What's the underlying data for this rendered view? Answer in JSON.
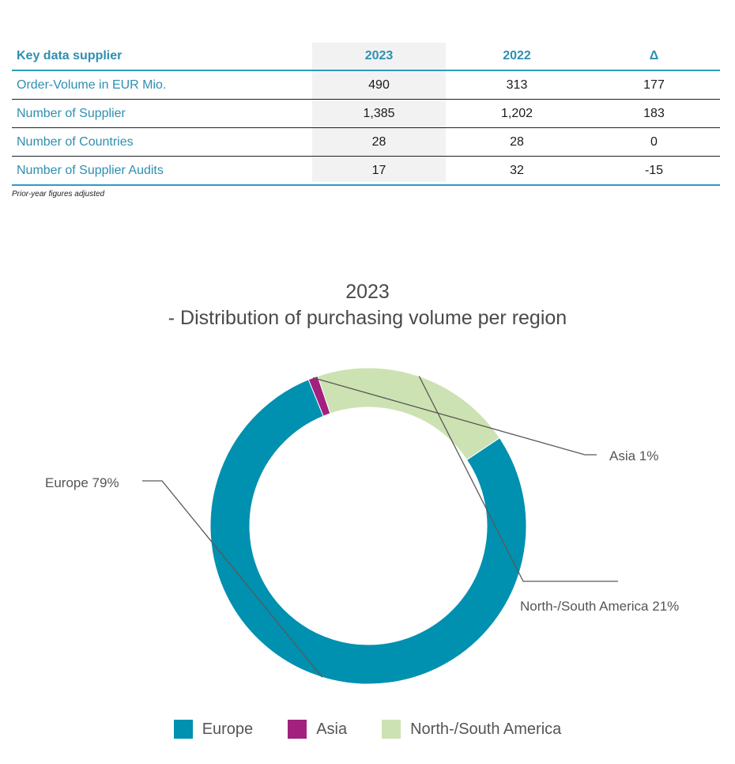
{
  "table": {
    "headers": [
      "Key data supplier",
      "2023",
      "2022",
      "Δ"
    ],
    "rows": [
      {
        "label": "Order-Volume in EUR Mio.",
        "v2023": "490",
        "v2022": "313",
        "delta": "177"
      },
      {
        "label": "Number of Supplier",
        "v2023": "1,385",
        "v2022": "1,202",
        "delta": "183"
      },
      {
        "label": "Number of Countries",
        "v2023": "28",
        "v2022": "28",
        "delta": "0"
      },
      {
        "label": "Number of Supplier Audits",
        "v2023": "17",
        "v2022": "32",
        "delta": "-15"
      }
    ],
    "footnote": "Prior-year figures adjusted"
  },
  "chart_data": {
    "type": "pie",
    "title_line1": "2023",
    "title_line2": "- Distribution of purchasing volume per region",
    "segments": [
      {
        "name": "Europe",
        "value": 79,
        "label": "Europe 79%",
        "color": "#0090b0"
      },
      {
        "name": "Asia",
        "value": 1,
        "label": "Asia 1%",
        "color": "#a2207e"
      },
      {
        "name": "North-/South America",
        "value": 21,
        "label": "North-/South America 21%",
        "color": "#cde2b2"
      }
    ],
    "legend": [
      "Europe",
      "Asia",
      "North-/South America"
    ],
    "legend_placement": "bottom",
    "donut": true
  },
  "colors": {
    "accent": "#2e8fb0",
    "table_rule": "#2e9bbf"
  }
}
